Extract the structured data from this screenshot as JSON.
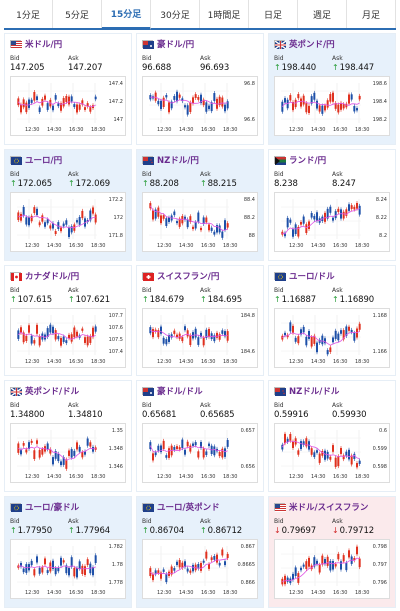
{
  "tabs": [
    {
      "label": "1分足",
      "active": false
    },
    {
      "label": "5分足",
      "active": false
    },
    {
      "label": "15分足",
      "active": true
    },
    {
      "label": "30分足",
      "active": false
    },
    {
      "label": "1時間足",
      "active": false
    },
    {
      "label": "日足",
      "active": false
    },
    {
      "label": "週足",
      "active": false
    },
    {
      "label": "月足",
      "active": false
    }
  ],
  "labels": {
    "bid": "Bid",
    "ask": "Ask"
  },
  "times": [
    "12:30",
    "14:30",
    "16:30",
    "18:30"
  ],
  "pairs": [
    {
      "name": "米ドル/円",
      "flag": "us",
      "bg": "white",
      "bid": "147.205",
      "ask": "147.207",
      "dir": "",
      "ticks": [
        "147.4",
        "147.2",
        "147"
      ],
      "trend": "flat"
    },
    {
      "name": "豪ドル/円",
      "flag": "au",
      "bg": "white",
      "bid": "96.688",
      "ask": "96.693",
      "dir": "",
      "ticks": [
        "96.8",
        "96.6"
      ],
      "trend": "flat"
    },
    {
      "name": "英ポンド/円",
      "flag": "gb",
      "bg": "alt",
      "bid": "198.440",
      "ask": "198.447",
      "dir": "up",
      "ticks": [
        "198.6",
        "198.4",
        "198.2"
      ],
      "trend": "flat"
    },
    {
      "name": "ユーロ/円",
      "flag": "eu",
      "bg": "alt",
      "bid": "172.065",
      "ask": "172.069",
      "dir": "up",
      "ticks": [
        "172.2",
        "172",
        "171.8"
      ],
      "trend": "dip"
    },
    {
      "name": "NZドル/円",
      "flag": "nz",
      "bg": "alt",
      "bid": "88.208",
      "ask": "88.215",
      "dir": "up",
      "ticks": [
        "88.4",
        "88.2",
        "88"
      ],
      "trend": "down"
    },
    {
      "name": "ランド/円",
      "flag": "za",
      "bg": "white",
      "bid": "8.238",
      "ask": "8.247",
      "dir": "",
      "ticks": [
        "8.24",
        "8.22",
        "8.2"
      ],
      "trend": "rise"
    },
    {
      "name": "カナダドル/円",
      "flag": "ca",
      "bg": "white",
      "bid": "107.615",
      "ask": "107.621",
      "dir": "up",
      "ticks": [
        "107.7",
        "107.6",
        "107.5",
        "107.4"
      ],
      "trend": "flat"
    },
    {
      "name": "スイスフラン/円",
      "flag": "ch",
      "bg": "white",
      "bid": "184.679",
      "ask": "184.695",
      "dir": "up",
      "ticks": [
        "184.8",
        "184.6"
      ],
      "trend": "flat"
    },
    {
      "name": "ユーロ/ドル",
      "flag": "eu",
      "bg": "white",
      "bid": "1.16887",
      "ask": "1.16890",
      "dir": "up",
      "ticks": [
        "1.168",
        "1.166"
      ],
      "trend": "dip"
    },
    {
      "name": "英ポンド/ドル",
      "flag": "gb",
      "bg": "white",
      "bid": "1.34800",
      "ask": "1.34810",
      "dir": "",
      "ticks": [
        "1.35",
        "1.348",
        "1.346"
      ],
      "trend": "dip"
    },
    {
      "name": "豪ドル/ドル",
      "flag": "au",
      "bg": "white",
      "bid": "0.65681",
      "ask": "0.65685",
      "dir": "",
      "ticks": [
        "0.657",
        "0.656"
      ],
      "trend": "flat"
    },
    {
      "name": "NZドル/ドル",
      "flag": "nz",
      "bg": "white",
      "bid": "0.59916",
      "ask": "0.59930",
      "dir": "",
      "ticks": [
        "0.6",
        "0.599",
        "0.598"
      ],
      "trend": "down"
    },
    {
      "name": "ユーロ/豪ドル",
      "flag": "eu",
      "bg": "alt",
      "bid": "1.77950",
      "ask": "1.77964",
      "dir": "up",
      "ticks": [
        "1.782",
        "1.78",
        "1.778"
      ],
      "trend": "flat"
    },
    {
      "name": "ユーロ/英ポンド",
      "flag": "eu",
      "bg": "alt",
      "bid": "0.86704",
      "ask": "0.86712",
      "dir": "up",
      "ticks": [
        "0.867",
        "0.8665",
        "0.866"
      ],
      "trend": "rise"
    },
    {
      "name": "米ドル/スイスフラン",
      "flag": "us",
      "bg": "pink",
      "bid": "0.79697",
      "ask": "0.79712",
      "dir": "down",
      "ticks": [
        "0.798",
        "0.797",
        "0.796"
      ],
      "trend": "rise"
    }
  ],
  "colors": {
    "accent": "#2c6db3",
    "title": "#6a2b8e",
    "up": "#2a9d3a",
    "down": "#d12b2b",
    "candleUp": "#e0301e",
    "candleDown": "#1d4fa8",
    "ma": "#e054e6"
  }
}
